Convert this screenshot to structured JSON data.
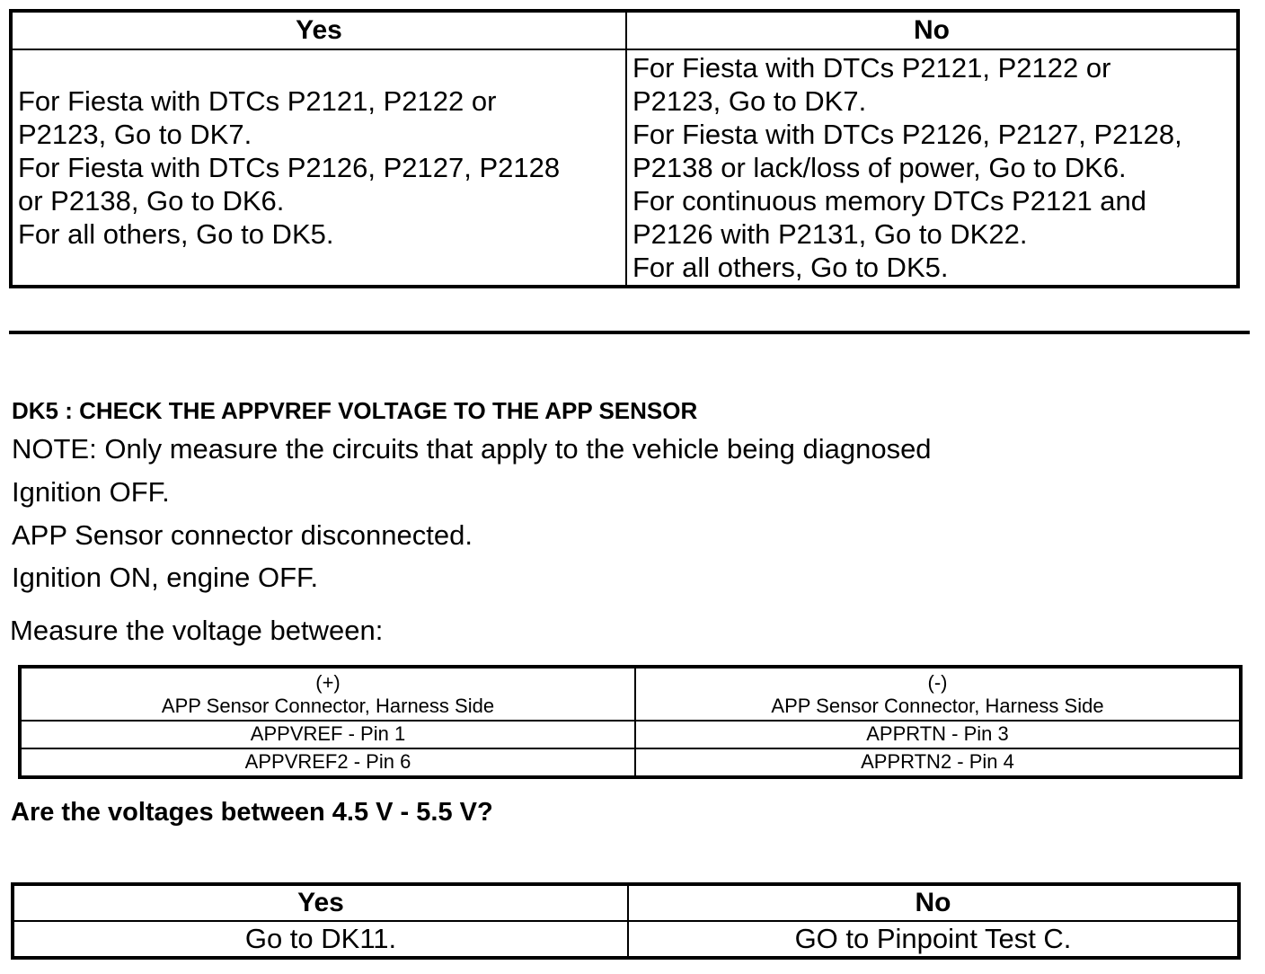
{
  "table1": {
    "headers": [
      "Yes",
      "No"
    ],
    "yes_lines": [
      "For Fiesta with DTCs P2121, P2122 or",
      "P2123, Go to DK7.",
      "For Fiesta with DTCs P2126, P2127, P2128",
      "or P2138, Go to DK6.",
      "For all others, Go to DK5."
    ],
    "no_lines": [
      "For Fiesta with DTCs P2121, P2122 or",
      "P2123, Go to DK7.",
      "For Fiesta with DTCs P2126, P2127, P2128,",
      "P2138 or lack/loss of power, Go to DK6.",
      "For continuous memory DTCs P2121 and",
      "P2126 with P2131, Go to DK22.",
      "For all others, Go to DK5."
    ]
  },
  "section": {
    "heading": "DK5 : CHECK THE APPVREF VOLTAGE TO THE APP SENSOR",
    "note": "NOTE: Only measure the circuits that apply to the vehicle being diagnosed",
    "steps": [
      "Ignition OFF.",
      "APP Sensor connector disconnected.",
      "Ignition ON, engine OFF."
    ],
    "measure": "Measure the voltage between:"
  },
  "table2": {
    "headers": [
      {
        "sign": "(+)",
        "label": "APP Sensor Connector, Harness Side"
      },
      {
        "sign": "(-)",
        "label": "APP Sensor Connector, Harness Side"
      }
    ],
    "rows": [
      [
        "APPVREF - Pin 1",
        "APPRTN - Pin 3"
      ],
      [
        "APPVREF2 - Pin 6",
        "APPRTN2 - Pin 4"
      ]
    ]
  },
  "question": "Are the voltages between 4.5 V - 5.5 V?",
  "table3": {
    "headers": [
      "Yes",
      "No"
    ],
    "values": [
      "Go to DK11.",
      "GO to Pinpoint Test C."
    ]
  }
}
